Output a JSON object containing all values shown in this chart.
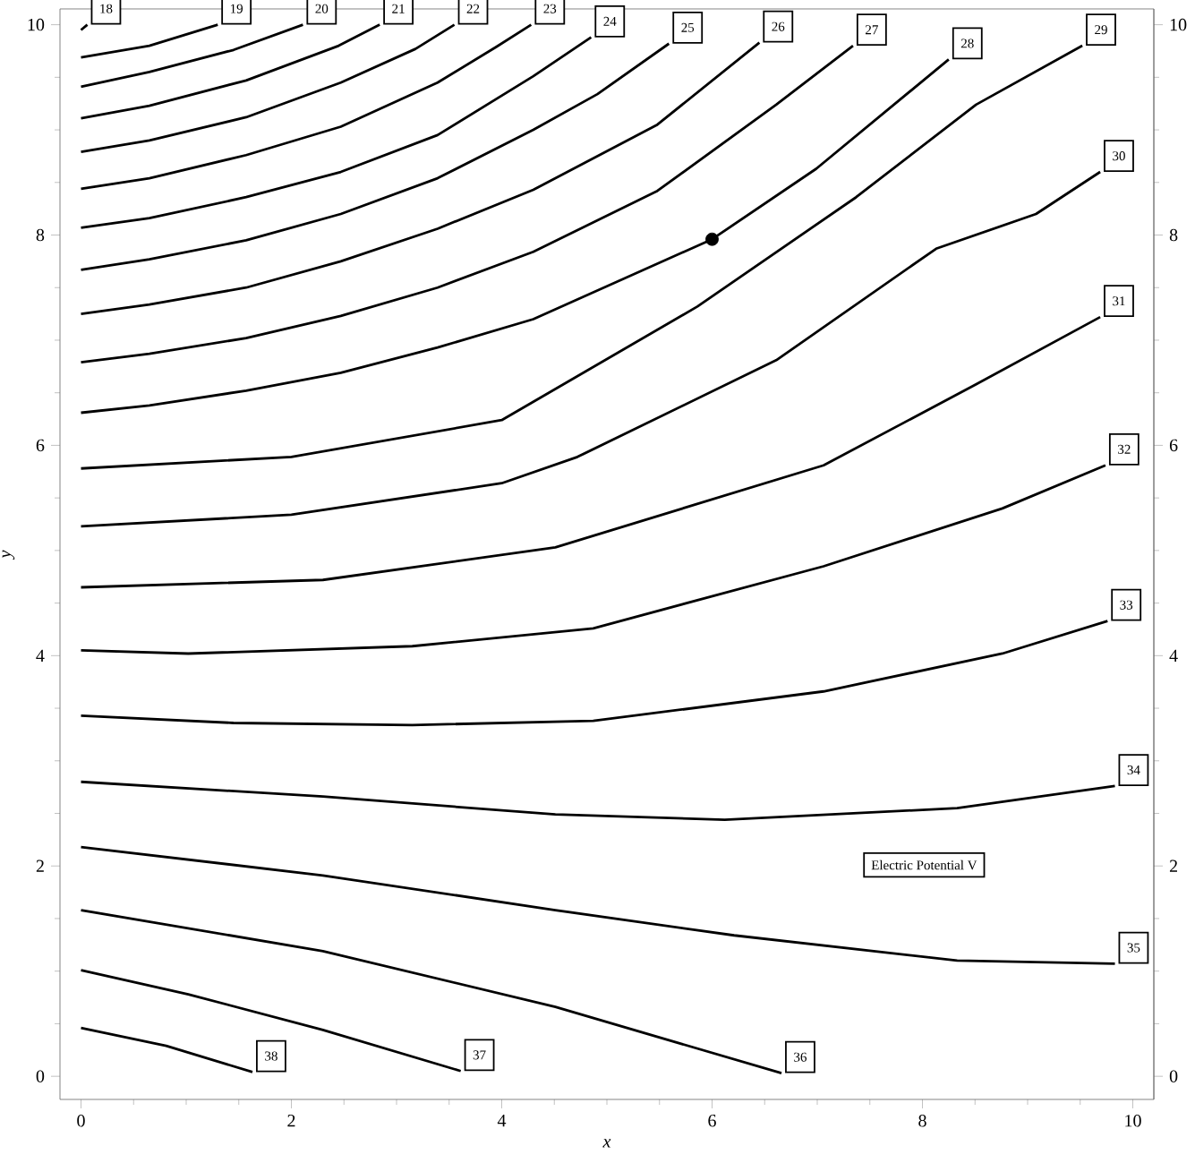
{
  "chart_data": {
    "type": "line",
    "xlabel": "x",
    "ylabel": "y",
    "xlim": [
      -0.2,
      10.2
    ],
    "ylim": [
      -0.22,
      10.15
    ],
    "y2lim": [
      -0.22,
      10.15
    ],
    "xticks": [
      0,
      2,
      4,
      6,
      8,
      10
    ],
    "yticks": [
      0,
      2,
      4,
      6,
      8,
      10
    ],
    "y2ticks": [
      0,
      2,
      4,
      6,
      8,
      10
    ],
    "legend": false,
    "line_style": "solid",
    "annotations": [
      "Electric Potential V"
    ],
    "series": [
      {
        "name": "18",
        "color": "#000000",
        "x": [
          0,
          0.06
        ],
        "values": [
          9.95,
          10.0
        ]
      },
      {
        "name": "19",
        "color": "#000000",
        "x": [
          0,
          0.65,
          1.3
        ],
        "values": [
          9.69,
          9.8,
          10.0
        ]
      },
      {
        "name": "20",
        "color": "#000000",
        "x": [
          0,
          0.65,
          1.45,
          2.11
        ],
        "values": [
          9.41,
          9.55,
          9.76,
          10.0
        ]
      },
      {
        "name": "21",
        "color": "#000000",
        "x": [
          0,
          0.65,
          1.57,
          2.45,
          2.84
        ],
        "values": [
          9.11,
          9.23,
          9.47,
          9.8,
          10.0
        ]
      },
      {
        "name": "22",
        "color": "#000000",
        "x": [
          0,
          0.65,
          1.57,
          2.47,
          3.18,
          3.55
        ],
        "values": [
          8.79,
          8.9,
          9.12,
          9.45,
          9.77,
          10.0
        ]
      },
      {
        "name": "23",
        "color": "#000000",
        "x": [
          0,
          0.65,
          1.57,
          2.47,
          3.39,
          3.95,
          4.28
        ],
        "values": [
          8.44,
          8.54,
          8.76,
          9.03,
          9.45,
          9.79,
          10.0
        ]
      },
      {
        "name": "24",
        "color": "#000000",
        "x": [
          0,
          0.65,
          1.57,
          2.47,
          3.39,
          4.3,
          4.85
        ],
        "values": [
          8.07,
          8.16,
          8.36,
          8.6,
          8.95,
          9.51,
          9.88
        ]
      },
      {
        "name": "25",
        "color": "#000000",
        "x": [
          0,
          0.65,
          1.57,
          2.47,
          3.39,
          4.3,
          4.91,
          5.59
        ],
        "values": [
          7.67,
          7.77,
          7.95,
          8.2,
          8.54,
          9.0,
          9.34,
          9.82
        ]
      },
      {
        "name": "26",
        "color": "#000000",
        "x": [
          0,
          0.65,
          1.57,
          2.47,
          3.39,
          4.3,
          5.48,
          6.45
        ],
        "values": [
          7.25,
          7.34,
          7.5,
          7.75,
          8.06,
          8.43,
          9.05,
          9.83
        ]
      },
      {
        "name": "27",
        "color": "#000000",
        "x": [
          0,
          0.65,
          1.57,
          2.47,
          3.39,
          4.3,
          5.48,
          6.61,
          7.34
        ],
        "values": [
          6.79,
          6.87,
          7.02,
          7.23,
          7.5,
          7.84,
          8.42,
          9.24,
          9.8
        ]
      },
      {
        "name": "28",
        "color": "#000000",
        "x": [
          0,
          0.65,
          1.57,
          2.47,
          3.39,
          4.3,
          6.0,
          6.99,
          8.25
        ],
        "values": [
          6.31,
          6.38,
          6.52,
          6.69,
          6.93,
          7.2,
          7.96,
          8.63,
          9.67
        ]
      },
      {
        "name": "29",
        "color": "#000000",
        "x": [
          0,
          2,
          4,
          5.86,
          7.37,
          8.51,
          9.52
        ],
        "values": [
          5.78,
          5.89,
          6.24,
          7.32,
          8.36,
          9.24,
          9.8
        ]
      },
      {
        "name": "30",
        "color": "#000000",
        "x": [
          0,
          2,
          4,
          4.72,
          6.61,
          8.13,
          9.08,
          9.69
        ],
        "values": [
          5.23,
          5.34,
          5.64,
          5.89,
          6.81,
          7.87,
          8.2,
          8.6
        ]
      },
      {
        "name": "31",
        "color": "#000000",
        "x": [
          0,
          2.3,
          4.51,
          7.06,
          8.51,
          9.69
        ],
        "values": [
          4.65,
          4.72,
          5.03,
          5.81,
          6.58,
          7.22
        ]
      },
      {
        "name": "32",
        "color": "#000000",
        "x": [
          0,
          1.02,
          3.15,
          4.87,
          7.06,
          8.76,
          9.74
        ],
        "values": [
          4.05,
          4.02,
          4.09,
          4.26,
          4.85,
          5.4,
          5.81
        ]
      },
      {
        "name": "33",
        "color": "#000000",
        "x": [
          0,
          1.45,
          3.15,
          4.87,
          7.06,
          8.76,
          9.76
        ],
        "values": [
          3.43,
          3.36,
          3.34,
          3.38,
          3.66,
          4.02,
          4.33
        ]
      },
      {
        "name": "34",
        "color": "#000000",
        "x": [
          0,
          2.3,
          4.51,
          6.12,
          8.33,
          9.83
        ],
        "values": [
          2.8,
          2.66,
          2.49,
          2.44,
          2.55,
          2.76
        ]
      },
      {
        "name": "35",
        "color": "#000000",
        "x": [
          0,
          2.3,
          4.51,
          6.21,
          8.33,
          9.83
        ],
        "values": [
          2.18,
          1.91,
          1.58,
          1.34,
          1.1,
          1.07
        ]
      },
      {
        "name": "36",
        "color": "#000000",
        "x": [
          0,
          2.3,
          4.51,
          6.66
        ],
        "values": [
          1.58,
          1.19,
          0.66,
          0.03
        ]
      },
      {
        "name": "37",
        "color": "#000000",
        "x": [
          0,
          1.02,
          2.3,
          3.61
        ],
        "values": [
          1.01,
          0.78,
          0.44,
          0.05
        ]
      },
      {
        "name": "38",
        "color": "#000000",
        "x": [
          0,
          0.81,
          1.63
        ],
        "values": [
          0.46,
          0.29,
          0.04
        ]
      },
      {
        "type": "scatter",
        "color": "#000000",
        "x": [
          6.0
        ],
        "values": [
          7.96
        ]
      }
    ]
  }
}
